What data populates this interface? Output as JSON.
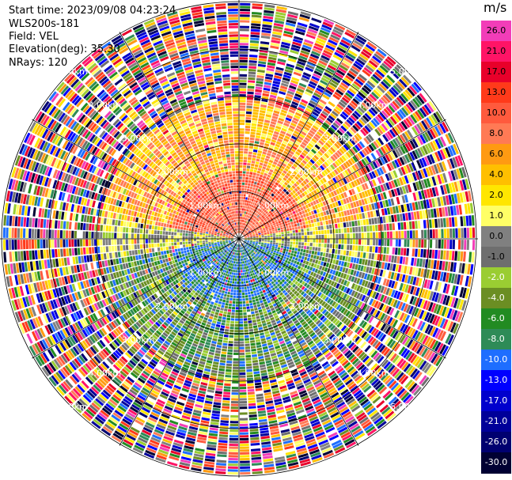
{
  "header": {
    "start_time": "Start time: 2023/09/08 04:23:24",
    "radar": "WLS200s-181",
    "field": "Field: VEL",
    "elevation": "Elevation(deg): 35.30",
    "nrays": "NRays: 120"
  },
  "chart_data": {
    "type": "heatmap",
    "subtype": "radar-ppi",
    "field": "VEL",
    "nrays": 120,
    "elevation_deg": 35.3,
    "rings_km": [
      1,
      2,
      3,
      4,
      5
    ],
    "ring_labels": [
      "1.00km",
      "2.00km",
      "3.00km",
      "4.00km",
      "5.00km"
    ],
    "colorbar": {
      "unit": "m/s",
      "levels": [
        "26.0",
        "21.0",
        "17.0",
        "13.0",
        "10.0",
        "8.0",
        "6.0",
        "4.0",
        "2.0",
        "1.0",
        "0.0",
        "-1.0",
        "-2.0",
        "-4.0",
        "-6.0",
        "-8.0",
        "-10.0",
        "-13.0",
        "-17.0",
        "-21.0",
        "-26.0",
        "-30.0"
      ],
      "colors": [
        "#f23db8",
        "#ff1466",
        "#e8002a",
        "#ff3a1a",
        "#ff5a3d",
        "#ff7a55",
        "#ff9a12",
        "#ffbf00",
        "#ffe600",
        "#ffff66",
        "#808080",
        "#6e6e6e",
        "#9acd32",
        "#6b8e23",
        "#228b22",
        "#2e8b57",
        "#1e6eff",
        "#0000ff",
        "#0000cd",
        "#000099",
        "#000070",
        "#000033"
      ]
    }
  }
}
